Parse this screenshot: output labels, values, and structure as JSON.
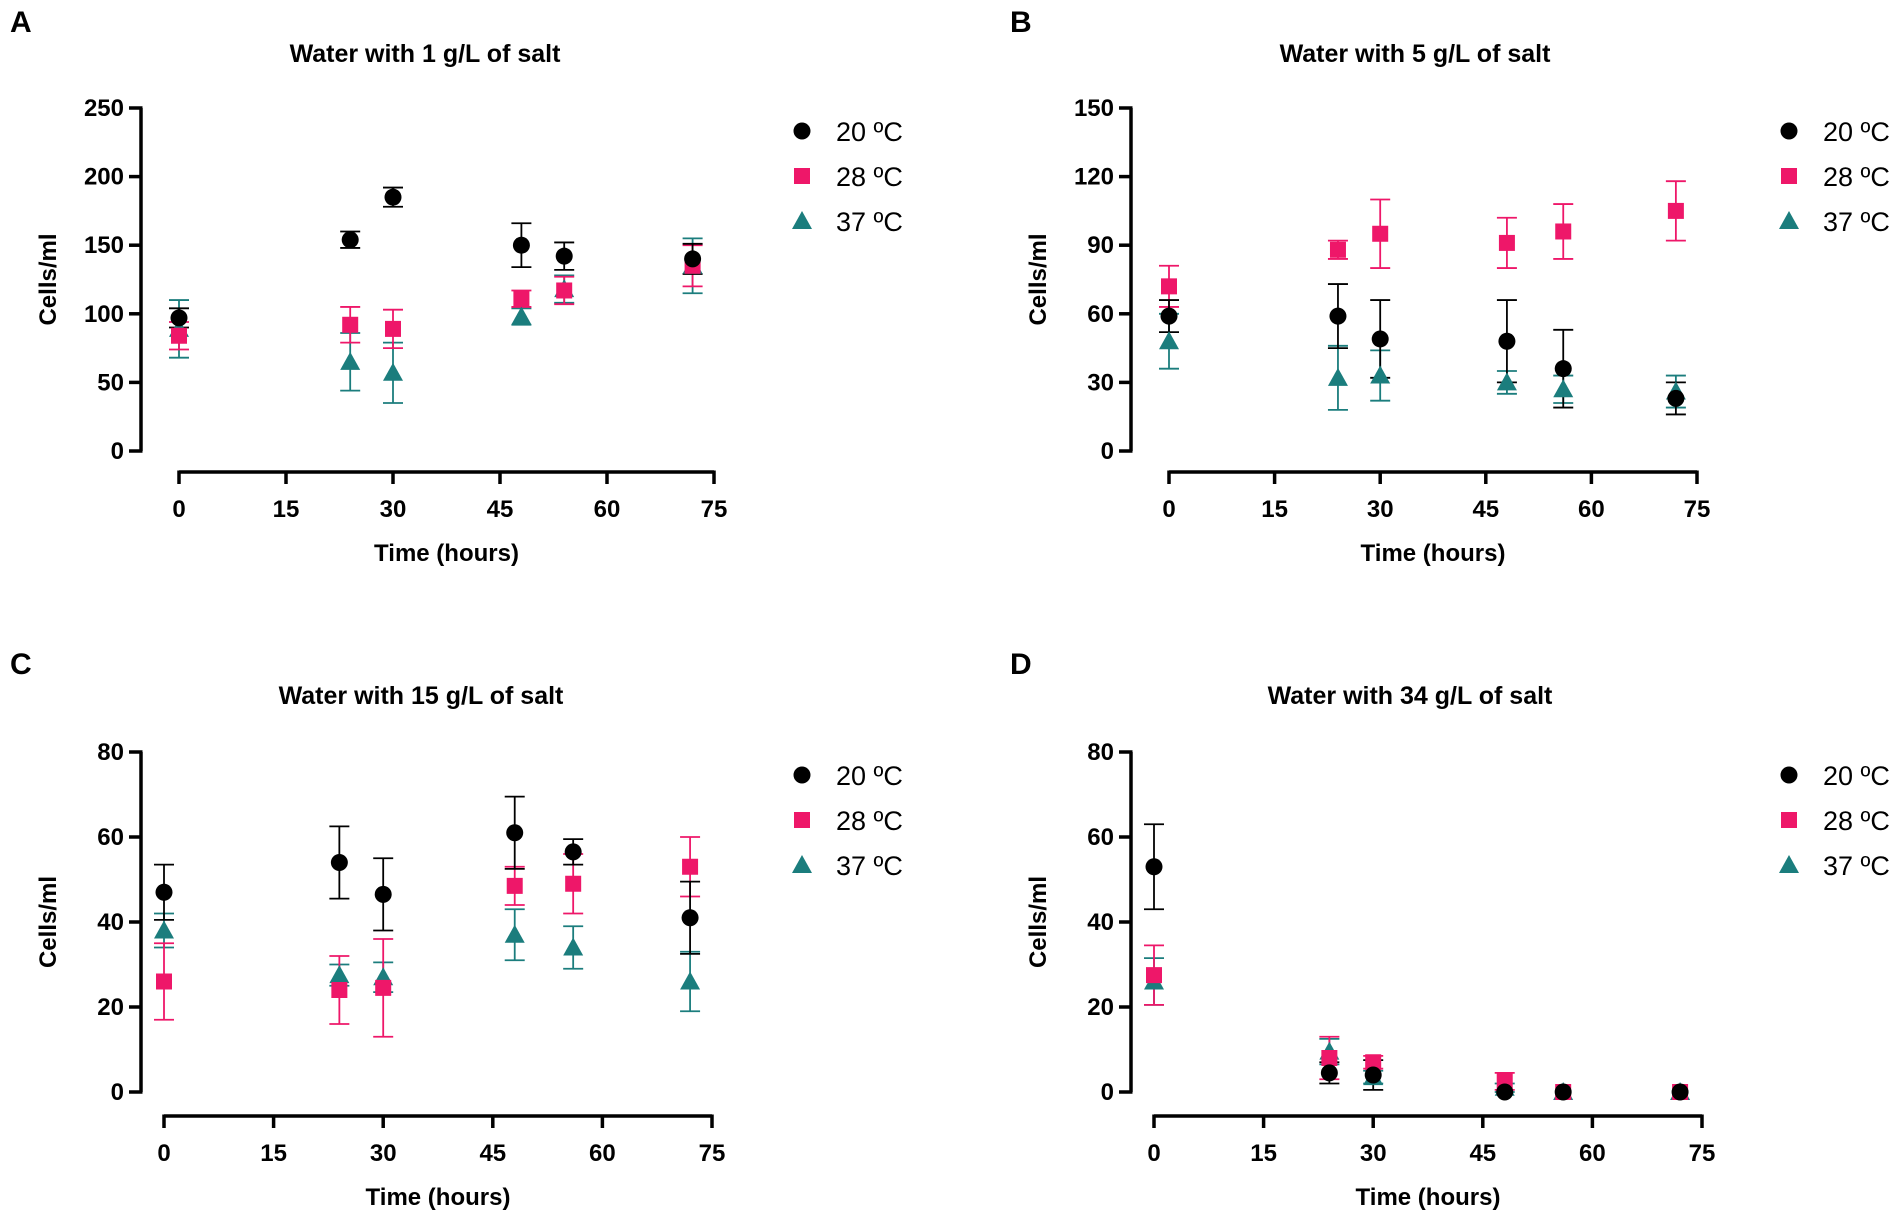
{
  "colors": {
    "20": "#000000",
    "28": "#ee1769",
    "37": "#1b7d7d"
  },
  "legend": [
    "20 ºC",
    "28 ºC",
    "37 ºC"
  ],
  "chart_data": [
    {
      "panel": "A",
      "type": "scatter",
      "title": "Water with 1 g/L of salt",
      "xlabel": "Time (hours)",
      "ylabel": "Cells/ml",
      "xlim": [
        0,
        75
      ],
      "ylim": [
        0,
        250
      ],
      "xticks": [
        0,
        15,
        30,
        45,
        60,
        75
      ],
      "yticks": [
        0,
        50,
        100,
        150,
        200,
        250
      ],
      "series": [
        {
          "name": "20 ºC",
          "marker": "circle",
          "x": [
            0,
            24,
            30,
            48,
            54,
            72
          ],
          "y": [
            97,
            154,
            185,
            150,
            142,
            140
          ],
          "err": [
            7,
            6,
            7,
            16,
            10,
            11
          ]
        },
        {
          "name": "28 ºC",
          "marker": "square",
          "x": [
            0,
            24,
            30,
            48,
            54,
            72
          ],
          "y": [
            84,
            92,
            89,
            111,
            117,
            135
          ],
          "err": [
            10,
            13,
            14,
            6,
            10,
            15
          ]
        },
        {
          "name": "37 ºC",
          "marker": "triangle",
          "x": [
            0,
            24,
            30,
            48,
            54,
            72
          ],
          "y": [
            89,
            65,
            57,
            98,
            118,
            135
          ],
          "err": [
            21,
            21,
            22,
            6,
            10,
            20
          ]
        }
      ]
    },
    {
      "panel": "B",
      "type": "scatter",
      "title": "Water with 5 g/L of salt",
      "xlabel": "Time (hours)",
      "ylabel": "Cells/ml",
      "xlim": [
        0,
        75
      ],
      "ylim": [
        0,
        150
      ],
      "xticks": [
        0,
        15,
        30,
        45,
        60,
        75
      ],
      "yticks": [
        0,
        30,
        60,
        90,
        120,
        150
      ],
      "series": [
        {
          "name": "20 ºC",
          "marker": "circle",
          "x": [
            0,
            24,
            30,
            48,
            56,
            72
          ],
          "y": [
            59,
            59,
            49,
            48,
            36,
            23
          ],
          "err": [
            7,
            14,
            17,
            18,
            17,
            7
          ]
        },
        {
          "name": "28 ºC",
          "marker": "square",
          "x": [
            0,
            24,
            30,
            48,
            56,
            72
          ],
          "y": [
            72,
            88,
            95,
            91,
            96,
            105
          ],
          "err": [
            9,
            4,
            15,
            11,
            12,
            13
          ]
        },
        {
          "name": "37 ºC",
          "marker": "triangle",
          "x": [
            0,
            24,
            30,
            48,
            56,
            72
          ],
          "y": [
            48,
            32,
            33,
            30,
            27,
            26
          ],
          "err": [
            12,
            14,
            11,
            5,
            6,
            7
          ]
        }
      ]
    },
    {
      "panel": "C",
      "type": "scatter",
      "title": "Water with 15 g/L of salt",
      "xlabel": "Time (hours)",
      "ylabel": "Cells/ml",
      "xlim": [
        0,
        75
      ],
      "ylim": [
        0,
        80
      ],
      "xticks": [
        0,
        15,
        30,
        45,
        60,
        75
      ],
      "yticks": [
        0,
        20,
        40,
        60,
        80
      ],
      "series": [
        {
          "name": "20 ºC",
          "marker": "circle",
          "x": [
            0,
            24,
            30,
            48,
            56,
            72
          ],
          "y": [
            47,
            54,
            46.5,
            61,
            56.5,
            41
          ],
          "err": [
            6.5,
            8.5,
            8.5,
            8.5,
            3,
            8.5
          ]
        },
        {
          "name": "28 ºC",
          "marker": "square",
          "x": [
            0,
            24,
            30,
            48,
            56,
            72
          ],
          "y": [
            26,
            24,
            24.5,
            48.5,
            49,
            53
          ],
          "err": [
            9,
            8,
            11.5,
            4.5,
            7,
            7
          ]
        },
        {
          "name": "37 ºC",
          "marker": "triangle",
          "x": [
            0,
            24,
            30,
            48,
            56,
            72
          ],
          "y": [
            38,
            27.5,
            27,
            37,
            34,
            26
          ],
          "err": [
            4,
            2.5,
            3.5,
            6,
            5,
            7
          ]
        }
      ]
    },
    {
      "panel": "D",
      "type": "scatter",
      "title": "Water with 34 g/L of salt",
      "xlabel": "Time (hours)",
      "ylabel": "Cells/ml",
      "xlim": [
        0,
        75
      ],
      "ylim": [
        0,
        80
      ],
      "xticks": [
        0,
        15,
        30,
        45,
        60,
        75
      ],
      "yticks": [
        0,
        20,
        40,
        60,
        80
      ],
      "series": [
        {
          "name": "20 ºC",
          "marker": "circle",
          "x": [
            0,
            24,
            30,
            48,
            56,
            72
          ],
          "y": [
            53,
            4.5,
            4,
            0,
            0,
            0
          ],
          "err": [
            10,
            2.5,
            3.5,
            0,
            0,
            0
          ]
        },
        {
          "name": "28 ºC",
          "marker": "square",
          "x": [
            0,
            24,
            30,
            48,
            56,
            72
          ],
          "y": [
            27.5,
            8,
            7,
            2.5,
            0,
            0
          ],
          "err": [
            7,
            5,
            1.5,
            2,
            0,
            0
          ]
        },
        {
          "name": "37 ºC",
          "marker": "triangle",
          "x": [
            0,
            24,
            30,
            48,
            56,
            72
          ],
          "y": [
            26,
            9.5,
            3.5,
            1,
            0,
            0
          ],
          "err": [
            5.5,
            3,
            1.5,
            1,
            0,
            0
          ]
        }
      ]
    }
  ]
}
